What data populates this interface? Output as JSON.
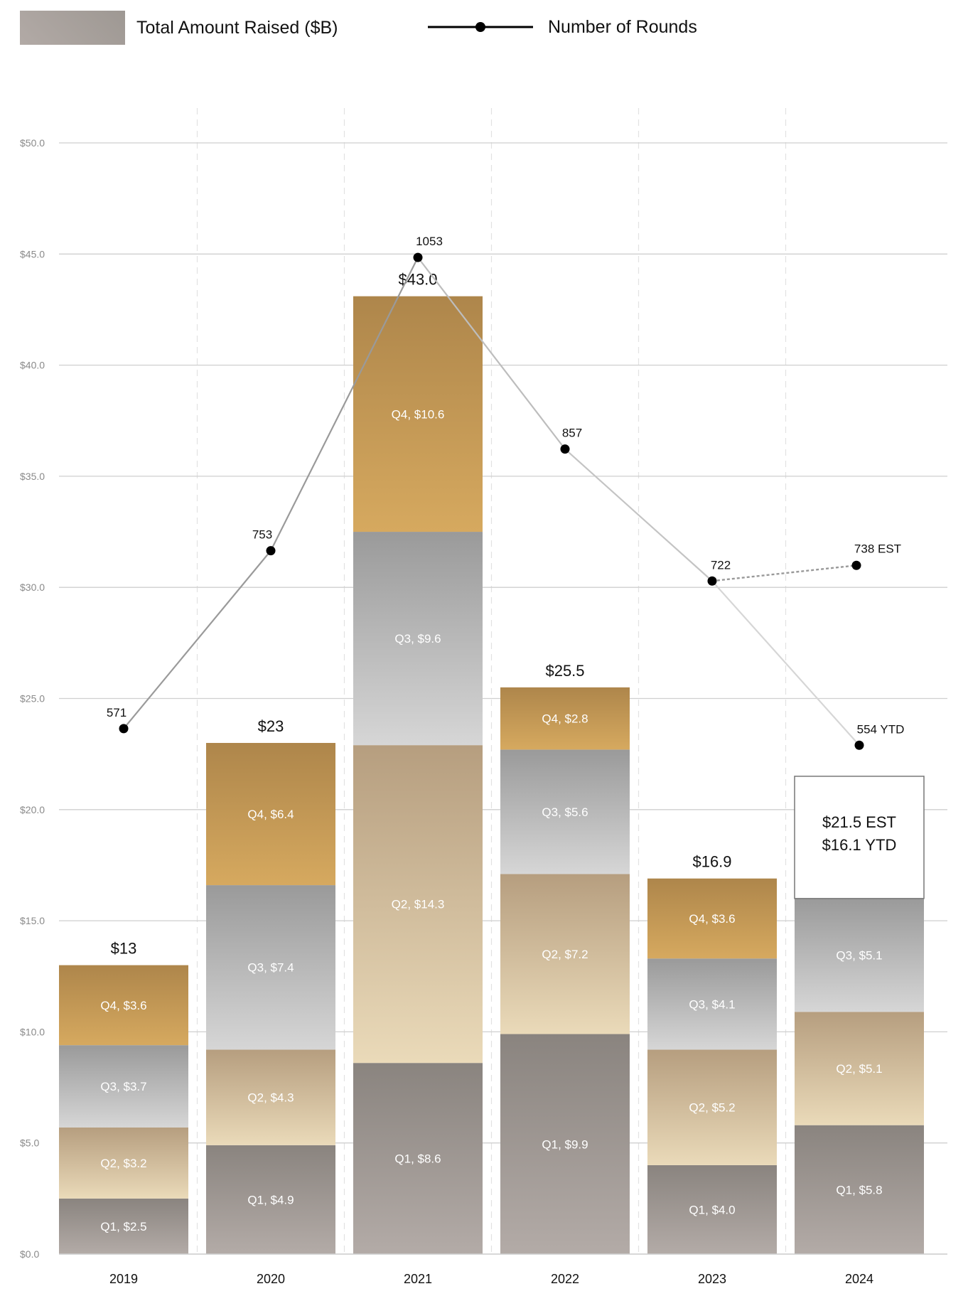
{
  "legend": {
    "bars_label": "Total Amount Raised ($B)",
    "line_label": "Number of Rounds"
  },
  "chart_data": {
    "type": "bar",
    "stacked": true,
    "categories": [
      "2019",
      "2020",
      "2021",
      "2022",
      "2023",
      "2024"
    ],
    "ylabel": "Total Amount Raised ($B)",
    "ylim": [
      0,
      50
    ],
    "yticks": [
      "$0.0",
      "$5.0",
      "$10.0",
      "$15.0",
      "$20.0",
      "$25.0",
      "$30.0",
      "$35.0",
      "$40.0",
      "$45.0",
      "$50.0"
    ],
    "ytick_values": [
      0,
      5,
      10,
      15,
      20,
      25,
      30,
      35,
      40,
      45,
      50
    ],
    "grid": true,
    "legend_position": "top-left",
    "series": [
      {
        "name": "Q1",
        "values": [
          2.5,
          4.9,
          8.6,
          9.9,
          4.0,
          5.8
        ],
        "labels": [
          "Q1, $2.5",
          "Q1, $4.9",
          "Q1, $8.6",
          "Q1, $9.9",
          "Q1, $4.0",
          "Q1, $5.8"
        ],
        "colors": [
          "#8a847f",
          "#b3aba7"
        ]
      },
      {
        "name": "Q2",
        "values": [
          3.2,
          4.3,
          14.3,
          7.2,
          5.2,
          5.1
        ],
        "labels": [
          "Q2, $3.2",
          "Q2, $4.3",
          "Q2, $14.3",
          "Q2, $7.2",
          "Q2, $5.2",
          "Q2, $5.1"
        ],
        "colors": [
          "#b69e7f",
          "#eadab9"
        ]
      },
      {
        "name": "Q3",
        "values": [
          3.7,
          7.4,
          9.6,
          5.6,
          4.1,
          5.1
        ],
        "labels": [
          "Q3, $3.7",
          "Q3, $7.4",
          "Q3, $9.6",
          "Q3, $5.6",
          "Q3, $4.1",
          "Q3,  $5.1"
        ],
        "colors": [
          "#9a9a9a",
          "#d6d6d6"
        ]
      },
      {
        "name": "Q4",
        "values": [
          3.6,
          6.4,
          10.6,
          2.8,
          3.6,
          null
        ],
        "labels": [
          "Q4, $3.6",
          "Q4, $6.4",
          "Q4, $10.6",
          "Q4, $2.8",
          "Q4, $3.6",
          null
        ],
        "colors": [
          "#ae864b",
          "#d6a95f"
        ]
      }
    ],
    "totals": [
      "$13",
      "$23",
      "$43.0",
      "$25.5",
      "$16.9",
      null
    ],
    "estimate_2024": {
      "value": 21.5,
      "labels": [
        "$21.5 EST",
        "$16.1 YTD"
      ]
    },
    "line_series": {
      "name": "Number of Rounds",
      "values": [
        571,
        753,
        1053,
        857,
        722,
        554
      ],
      "labels": [
        "571",
        "753",
        "1053",
        "857",
        "722",
        "554 YTD"
      ],
      "estimate": {
        "value": 738,
        "label": "738 EST"
      },
      "color": "#000000"
    }
  }
}
